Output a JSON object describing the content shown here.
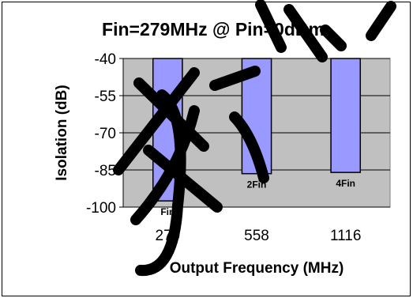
{
  "chart_data": {
    "type": "bar",
    "title": "Fin=279MHz @ Pin=0dBm",
    "xlabel": "Output Frequency (MHz)",
    "ylabel": "Isolation (dB)",
    "categories": [
      "279",
      "558",
      "1116"
    ],
    "series": [
      {
        "values": [
          -97.5,
          -86.5,
          -86
        ]
      }
    ],
    "bar_labels": [
      "Fin",
      "2Fin",
      "4Fin"
    ],
    "ylim": [
      -100,
      -40
    ],
    "yticks": [
      "-40",
      "-55",
      "-70",
      "-85",
      "-100"
    ],
    "bar_baseline": -40,
    "grid": true,
    "legend": "none",
    "colors": {
      "plot_background": "#c0c0c0",
      "bar_fill": "#9999ff",
      "bar_stroke": "#000000",
      "gridline": "#000000",
      "watermark": "#000000"
    }
  }
}
